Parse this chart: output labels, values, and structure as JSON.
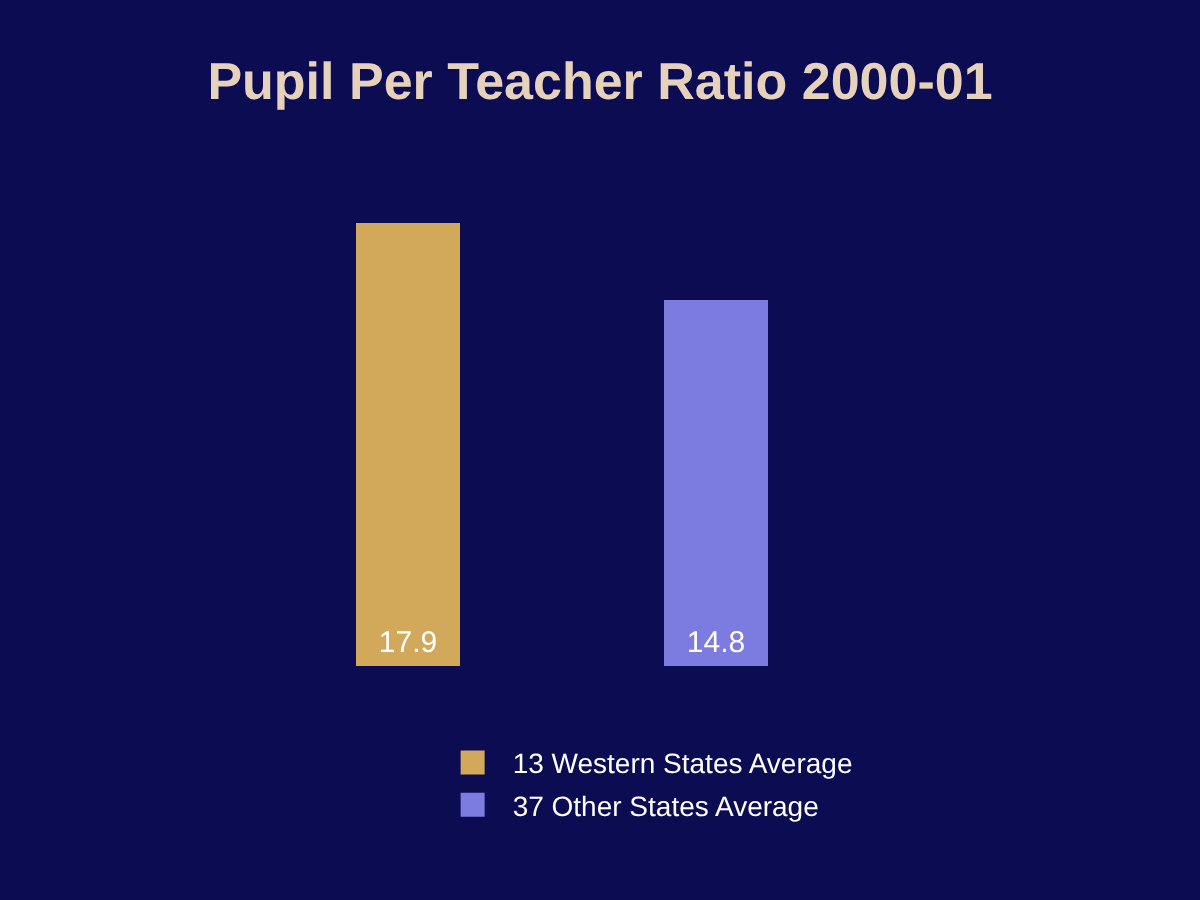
{
  "chart_data": {
    "type": "bar",
    "title": "Pupil Per Teacher Ratio 2000-01",
    "categories": [
      null,
      null
    ],
    "stacked": true,
    "series": [
      {
        "name": "13 Western States Average",
        "color": "#d2a85a",
        "values": [
          17.9,
          null
        ]
      },
      {
        "name": "37 Other States Average",
        "color": "#7b7be0",
        "values": [
          null,
          14.8
        ]
      }
    ],
    "data_labels": true,
    "legend": "bottom",
    "tick_labels": false
  }
}
